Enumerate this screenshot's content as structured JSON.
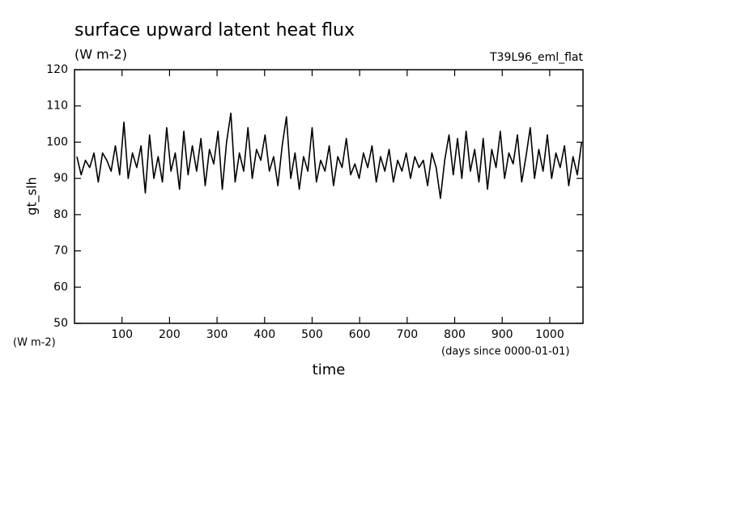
{
  "chart_data": {
    "type": "line",
    "title": "surface upward latent heat flux",
    "subtitle": "(W m-2)",
    "annotation": "T39L96_eml_flat",
    "y_label": "gt_slh",
    "y_unit_label": "(W m-2)",
    "x_unit_label": "(days since 0000-01-01)",
    "x_label": "time",
    "xlim": [
      0,
      1070
    ],
    "ylim": [
      50,
      120
    ],
    "xticks": [
      100,
      200,
      300,
      400,
      500,
      600,
      700,
      800,
      900,
      1000
    ],
    "yticks": [
      50,
      60,
      70,
      80,
      90,
      100,
      110,
      120
    ],
    "x": [
      5,
      14,
      23,
      32,
      41,
      50,
      59,
      68,
      77,
      86,
      95,
      104,
      113,
      122,
      131,
      140,
      149,
      158,
      167,
      176,
      185,
      194,
      203,
      212,
      221,
      230,
      239,
      248,
      257,
      266,
      275,
      284,
      293,
      302,
      311,
      320,
      329,
      338,
      347,
      356,
      365,
      374,
      383,
      392,
      401,
      410,
      419,
      428,
      437,
      446,
      455,
      464,
      473,
      482,
      491,
      500,
      509,
      518,
      527,
      536,
      545,
      554,
      563,
      572,
      581,
      590,
      599,
      608,
      617,
      626,
      635,
      644,
      653,
      662,
      671,
      680,
      689,
      698,
      707,
      716,
      725,
      734,
      743,
      752,
      761,
      770,
      779,
      788,
      797,
      806,
      815,
      824,
      833,
      842,
      851,
      860,
      869,
      878,
      887,
      896,
      905,
      914,
      923,
      932,
      941,
      950,
      959,
      968,
      977,
      986,
      995,
      1004,
      1013,
      1022,
      1031,
      1040,
      1049,
      1058,
      1067
    ],
    "series": [
      {
        "color": "#000000",
        "values": [
          96,
          91,
          95,
          93,
          97,
          89,
          97,
          95,
          92,
          99,
          91,
          105.5,
          90,
          97,
          93,
          99,
          86,
          102,
          90,
          96,
          89,
          104,
          92,
          97,
          87,
          103,
          91,
          99,
          92,
          101,
          88,
          98,
          94,
          103,
          87,
          100,
          108,
          89,
          97,
          92,
          104,
          90,
          98,
          95,
          102,
          92,
          96,
          88,
          99,
          107,
          90,
          97,
          87,
          96,
          92,
          104,
          89,
          95,
          92,
          99,
          88,
          96,
          93,
          101,
          91,
          94,
          90,
          97,
          93,
          99,
          89,
          96,
          92,
          98,
          89,
          95,
          92,
          97,
          90,
          96,
          93,
          95,
          88,
          97,
          93,
          84.5,
          95,
          102,
          91,
          101,
          90,
          103,
          92,
          98,
          89,
          101,
          87,
          98,
          93,
          103,
          90,
          97,
          94,
          102,
          89,
          96,
          104,
          90,
          98,
          92,
          102,
          90,
          97,
          93,
          99,
          88,
          96,
          91,
          100
        ]
      }
    ]
  }
}
